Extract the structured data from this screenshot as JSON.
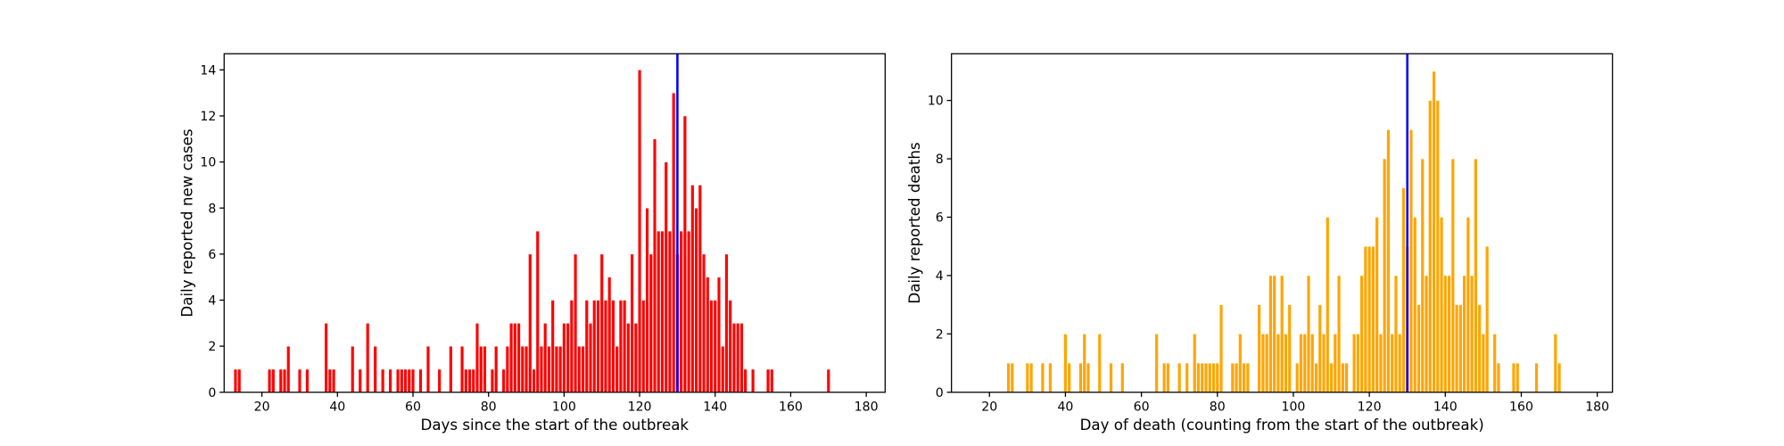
{
  "chart_data": [
    {
      "type": "bar",
      "xlabel": "Days since the start of the outbreak",
      "ylabel": "Daily reported new cases",
      "color": "#ff0000",
      "edgecolor": "#ffffff",
      "x": [
        13,
        14,
        22,
        23,
        25,
        26,
        27,
        30,
        32,
        37,
        38,
        39,
        44,
        46,
        48,
        50,
        52,
        54,
        56,
        57,
        58,
        59,
        60,
        62,
        64,
        67,
        70,
        73,
        74,
        75,
        76,
        77,
        78,
        79,
        81,
        82,
        84,
        85,
        86,
        87,
        88,
        89,
        90,
        91,
        92,
        93,
        94,
        95,
        96,
        97,
        98,
        99,
        100,
        101,
        102,
        103,
        104,
        105,
        106,
        107,
        108,
        109,
        110,
        111,
        112,
        113,
        114,
        115,
        116,
        117,
        118,
        119,
        120,
        121,
        122,
        123,
        124,
        125,
        126,
        127,
        128,
        129,
        130,
        131,
        132,
        133,
        134,
        135,
        136,
        137,
        138,
        139,
        140,
        141,
        142,
        143,
        144,
        145,
        146,
        147,
        148,
        150,
        154,
        155,
        170
      ],
      "values": [
        1,
        1,
        1,
        1,
        1,
        1,
        2,
        1,
        1,
        3,
        1,
        1,
        2,
        1,
        3,
        2,
        1,
        1,
        1,
        1,
        1,
        1,
        1,
        1,
        2,
        1,
        2,
        2,
        1,
        1,
        1,
        3,
        2,
        2,
        1,
        2,
        1,
        2,
        3,
        3,
        3,
        2,
        2,
        6,
        1,
        7,
        2,
        3,
        2,
        4,
        2,
        2,
        3,
        3,
        4,
        6,
        2,
        2,
        4,
        3,
        4,
        4,
        6,
        4,
        5,
        4,
        2,
        4,
        4,
        3,
        6,
        3,
        14,
        4,
        8,
        6,
        11,
        7,
        7,
        10,
        7,
        13,
        6,
        7,
        12,
        7,
        9,
        8,
        9,
        6,
        5,
        4,
        4,
        5,
        2,
        6,
        4,
        3,
        3,
        3,
        1,
        1,
        1,
        1,
        1
      ],
      "xlim": [
        10,
        185
      ],
      "ylim": [
        0,
        14.7
      ],
      "xticks": [
        20,
        40,
        60,
        80,
        100,
        120,
        140,
        160,
        180
      ],
      "yticks": [
        0,
        2,
        4,
        6,
        8,
        10,
        12,
        14
      ],
      "vline": 130,
      "vline_color": "#0000ff"
    },
    {
      "type": "bar",
      "xlabel": "Day of death (counting from the start of the outbreak)",
      "ylabel": "Daily reported deaths",
      "color": "#ffa500",
      "edgecolor": "#ffffff",
      "x": [
        25,
        26,
        30,
        31,
        34,
        36,
        40,
        41,
        44,
        45,
        46,
        49,
        52,
        55,
        64,
        66,
        67,
        70,
        72,
        74,
        75,
        76,
        77,
        78,
        79,
        80,
        81,
        84,
        85,
        86,
        87,
        88,
        91,
        92,
        93,
        94,
        95,
        96,
        97,
        98,
        99,
        101,
        102,
        103,
        104,
        105,
        106,
        107,
        108,
        109,
        110,
        111,
        112,
        113,
        114,
        116,
        117,
        118,
        119,
        120,
        121,
        122,
        123,
        124,
        125,
        126,
        127,
        128,
        129,
        130,
        131,
        132,
        133,
        134,
        135,
        136,
        137,
        138,
        139,
        140,
        141,
        142,
        143,
        144,
        145,
        146,
        147,
        148,
        149,
        150,
        151,
        153,
        154,
        158,
        159,
        164,
        169,
        170
      ],
      "values": [
        1,
        1,
        1,
        1,
        1,
        1,
        2,
        1,
        1,
        2,
        1,
        2,
        1,
        1,
        2,
        1,
        1,
        1,
        1,
        2,
        1,
        1,
        1,
        1,
        1,
        1,
        3,
        1,
        1,
        2,
        1,
        1,
        3,
        2,
        2,
        4,
        4,
        2,
        4,
        2,
        3,
        1,
        2,
        2,
        4,
        2,
        1,
        3,
        2,
        6,
        1,
        2,
        4,
        1,
        1,
        2,
        2,
        4,
        5,
        5,
        5,
        6,
        2,
        8,
        9,
        2,
        4,
        2,
        7,
        5,
        9,
        6,
        3,
        8,
        4,
        10,
        11,
        10,
        6,
        4,
        4,
        8,
        3,
        3,
        4,
        6,
        4,
        8,
        3,
        2,
        5,
        2,
        1,
        1,
        1,
        1,
        2,
        1
      ],
      "xlim": [
        10,
        184
      ],
      "ylim": [
        0,
        11.6
      ],
      "xticks": [
        20,
        40,
        60,
        80,
        100,
        120,
        140,
        160,
        180
      ],
      "yticks": [
        0,
        2,
        4,
        6,
        8,
        10
      ],
      "vline": 130,
      "vline_color": "#0000ff"
    }
  ]
}
